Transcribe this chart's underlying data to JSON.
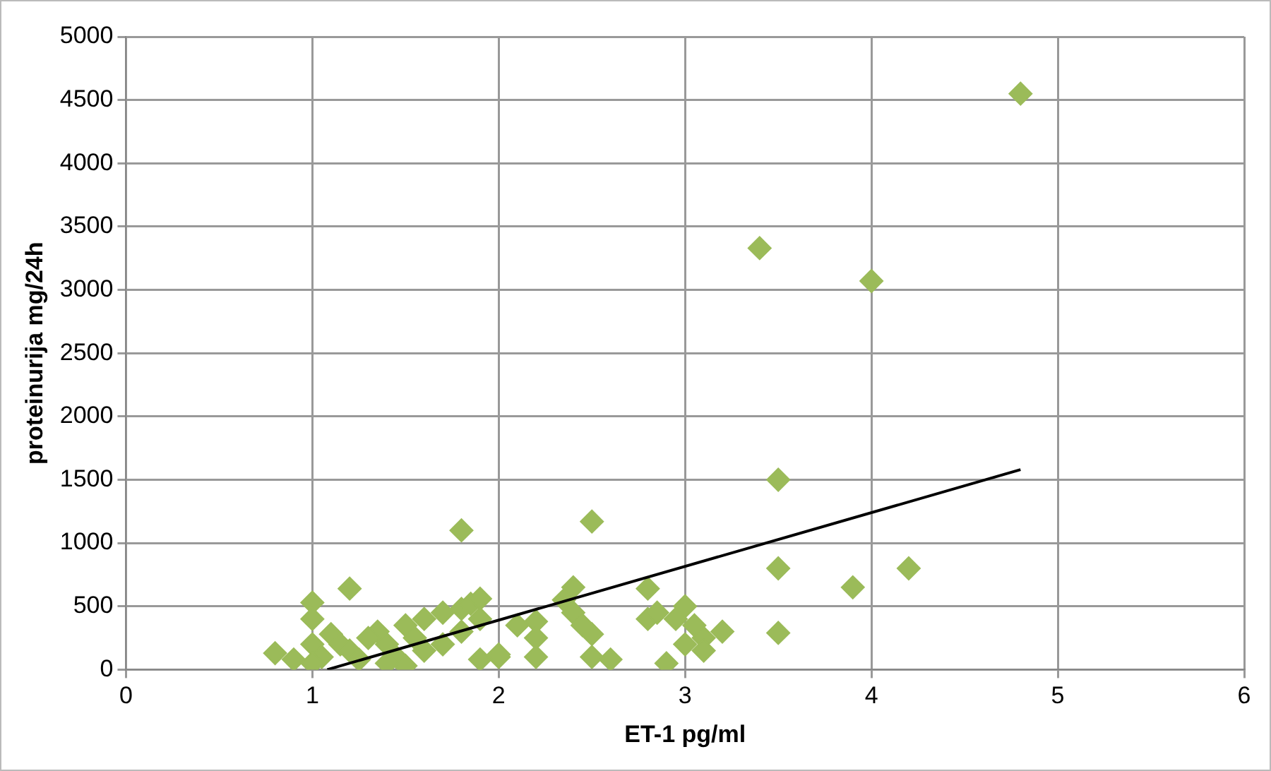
{
  "chart_data": {
    "type": "scatter",
    "xlabel": "ET-1 pg/ml",
    "ylabel": "proteinurija mg/24h",
    "xlim": [
      0,
      6
    ],
    "xticks": [
      0,
      1,
      2,
      3,
      4,
      5,
      6
    ],
    "ylim": [
      0,
      5000
    ],
    "yticks": [
      0,
      500,
      1000,
      1500,
      2000,
      2500,
      3000,
      3500,
      4000,
      4500,
      5000
    ],
    "grid": true,
    "legend": false,
    "series": [
      {
        "marker": "diamond",
        "color": "#9bbb59",
        "x": [
          4.8,
          3.4,
          4.0,
          1.8,
          2.5,
          3.5,
          3.5,
          3.9,
          4.2,
          3.5,
          2.4,
          2.8,
          1.2,
          1.0,
          1.0,
          0.8,
          0.9,
          1.0,
          1.05,
          1.1,
          1.15,
          1.2,
          1.25,
          1.35,
          1.4,
          1.45,
          1.5,
          1.5,
          1.6,
          1.6,
          1.7,
          1.8,
          1.8,
          1.85,
          1.9,
          1.9,
          1.9,
          2.0,
          2.1,
          2.2,
          2.2,
          2.2,
          2.35,
          2.4,
          2.45,
          2.5,
          2.5,
          2.6,
          2.8,
          2.85,
          2.9,
          2.95,
          3.0,
          3.0,
          3.05,
          3.1,
          3.1,
          3.2,
          1.0,
          1.3,
          1.55,
          1.7,
          2.0,
          1.4
        ],
        "values": [
          4550,
          3330,
          3070,
          1100,
          1170,
          1500,
          800,
          650,
          800,
          290,
          650,
          640,
          640,
          530,
          400,
          130,
          80,
          200,
          100,
          280,
          200,
          150,
          80,
          300,
          200,
          100,
          350,
          30,
          400,
          150,
          450,
          480,
          300,
          520,
          560,
          80,
          400,
          100,
          350,
          380,
          250,
          100,
          550,
          450,
          350,
          280,
          100,
          80,
          400,
          450,
          50,
          400,
          500,
          200,
          350,
          250,
          150,
          300,
          50,
          250,
          250,
          200,
          120,
          50
        ]
      },
      {
        "type": "line",
        "marker": "none",
        "color": "#000000",
        "x": [
          1.08,
          4.8
        ],
        "values": [
          0,
          1580
        ]
      }
    ]
  }
}
